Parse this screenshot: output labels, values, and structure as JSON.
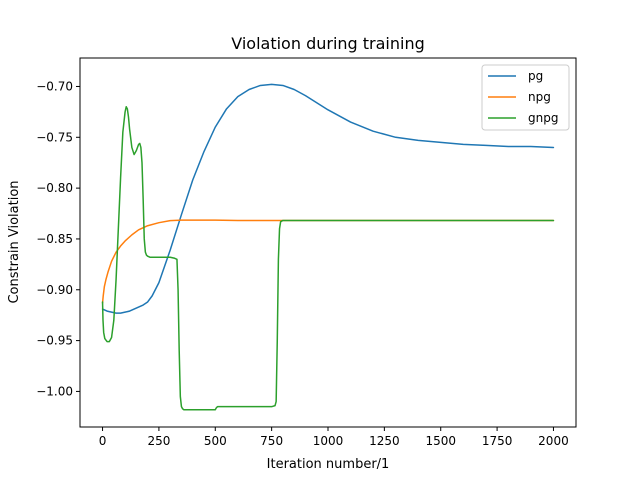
{
  "chart_data": {
    "type": "line",
    "title": "Violation during training",
    "xlabel": "Iteration number/1",
    "ylabel": "Constrain Violation",
    "xlim": [
      -100,
      2100
    ],
    "ylim": [
      -1.035,
      -0.672
    ],
    "xticks": [
      0,
      250,
      500,
      750,
      1000,
      1250,
      1500,
      1750,
      2000
    ],
    "yticks": [
      -1.0,
      -0.95,
      -0.9,
      -0.85,
      -0.8,
      -0.75,
      -0.7
    ],
    "xtick_labels": [
      "0",
      "250",
      "500",
      "750",
      "1000",
      "1250",
      "1500",
      "1750",
      "2000"
    ],
    "ytick_labels": [
      "−1.00",
      "−0.95",
      "−0.90",
      "−0.85",
      "−0.80",
      "−0.75",
      "−0.70"
    ],
    "grid": false,
    "legend": "top-right",
    "series": [
      {
        "name": "pg",
        "color": "#1f77b4",
        "x": [
          0,
          20,
          40,
          60,
          80,
          100,
          120,
          150,
          180,
          200,
          220,
          250,
          300,
          350,
          400,
          450,
          500,
          550,
          600,
          650,
          700,
          750,
          800,
          850,
          900,
          1000,
          1100,
          1200,
          1300,
          1400,
          1500,
          1600,
          1700,
          1800,
          1900,
          2000
        ],
        "y": [
          -0.919,
          -0.921,
          -0.922,
          -0.923,
          -0.923,
          -0.922,
          -0.921,
          -0.918,
          -0.915,
          -0.912,
          -0.906,
          -0.893,
          -0.861,
          -0.826,
          -0.792,
          -0.764,
          -0.74,
          -0.722,
          -0.71,
          -0.703,
          -0.699,
          -0.698,
          -0.699,
          -0.703,
          -0.709,
          -0.723,
          -0.735,
          -0.744,
          -0.75,
          -0.753,
          -0.755,
          -0.757,
          -0.758,
          -0.759,
          -0.759,
          -0.76
        ]
      },
      {
        "name": "npg",
        "color": "#ff7f0e",
        "x": [
          0,
          3,
          8,
          15,
          25,
          40,
          60,
          80,
          100,
          130,
          160,
          200,
          250,
          300,
          350,
          400,
          500,
          600,
          700,
          800,
          1000,
          1250,
          1500,
          1750,
          2000
        ],
        "y": [
          -0.913,
          -0.906,
          -0.897,
          -0.89,
          -0.882,
          -0.872,
          -0.863,
          -0.857,
          -0.852,
          -0.846,
          -0.841,
          -0.837,
          -0.834,
          -0.832,
          -0.8315,
          -0.8315,
          -0.8315,
          -0.8318,
          -0.8318,
          -0.8318,
          -0.8318,
          -0.8318,
          -0.8318,
          -0.8318,
          -0.8318
        ]
      },
      {
        "name": "gnpg",
        "color": "#2ca02c",
        "x": [
          0,
          2,
          5,
          10,
          20,
          30,
          40,
          50,
          60,
          70,
          80,
          90,
          100,
          105,
          110,
          115,
          120,
          130,
          140,
          150,
          160,
          165,
          170,
          175,
          180,
          185,
          190,
          195,
          200,
          210,
          220,
          240,
          260,
          280,
          300,
          320,
          330,
          335,
          340,
          345,
          350,
          355,
          360,
          370,
          400,
          450,
          500,
          505,
          510,
          550,
          600,
          650,
          700,
          750,
          765,
          770,
          775,
          780,
          785,
          790,
          800,
          900,
          1000,
          1250,
          1500,
          1750,
          2000
        ],
        "y": [
          -0.912,
          -0.93,
          -0.942,
          -0.948,
          -0.951,
          -0.951,
          -0.947,
          -0.93,
          -0.89,
          -0.84,
          -0.79,
          -0.745,
          -0.725,
          -0.72,
          -0.722,
          -0.73,
          -0.742,
          -0.76,
          -0.767,
          -0.763,
          -0.757,
          -0.756,
          -0.76,
          -0.775,
          -0.81,
          -0.85,
          -0.863,
          -0.866,
          -0.867,
          -0.868,
          -0.868,
          -0.868,
          -0.868,
          -0.868,
          -0.868,
          -0.869,
          -0.87,
          -0.9,
          -0.96,
          -1.005,
          -1.015,
          -1.017,
          -1.018,
          -1.018,
          -1.018,
          -1.018,
          -1.018,
          -1.016,
          -1.015,
          -1.015,
          -1.015,
          -1.015,
          -1.015,
          -1.015,
          -1.014,
          -1.01,
          -0.95,
          -0.87,
          -0.84,
          -0.833,
          -0.8318,
          -0.8318,
          -0.8318,
          -0.8318,
          -0.8318,
          -0.8318,
          -0.8318
        ]
      }
    ]
  }
}
